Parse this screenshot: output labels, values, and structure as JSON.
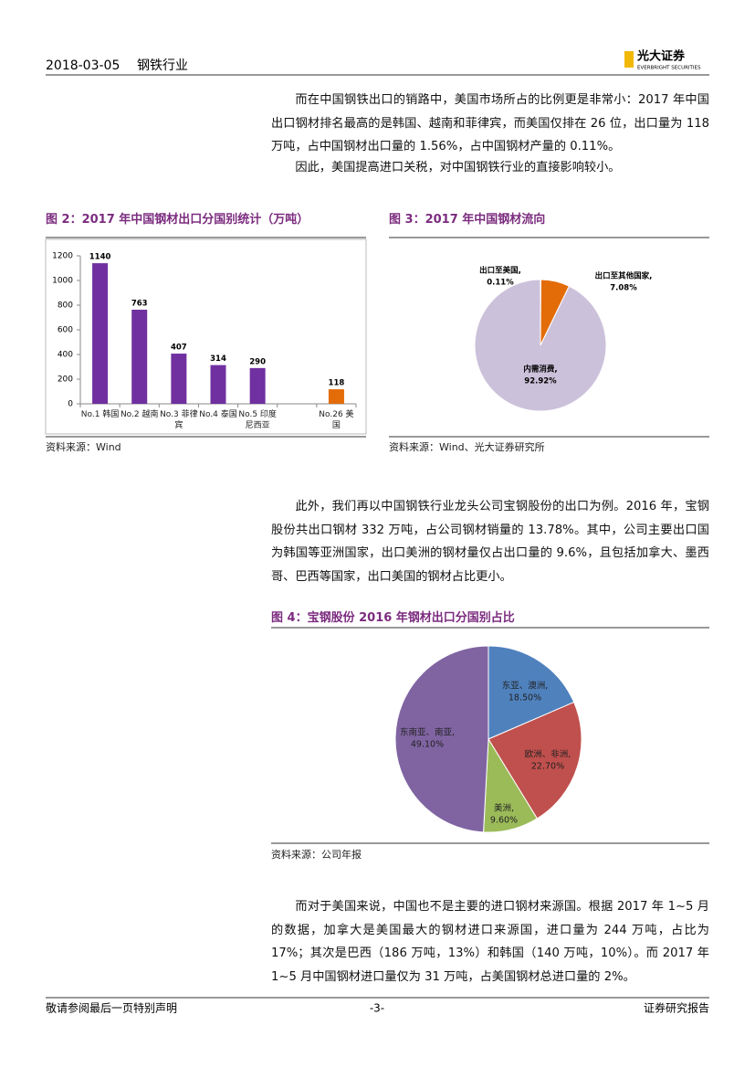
{
  "header": {
    "date": "2018-03-05",
    "section": "钢铁行业",
    "logo": "光大证券",
    "logo_en": "EVERBRIGHT SECURITIES"
  },
  "paragraphs": [
    "而在中国钢铁出口的销路中，美国市场所占的比例更是非常小：2017 年中国出口钢材排名最高的是韩国、越南和菲律宾，而美国仅排在 26 位，出口量为 118 万吨，占中国钢材出口量的 1.56%，占中国钢材产量的 0.11%。",
    "因此，美国提高进口关税，对中国钢铁行业的直接影响较小。",
    "此外，我们再以中国钢铁行业龙头公司宝钢股份的出口为例。2016 年，宝钢股份共出口钢材 332 万吨，占公司钢材销量的 13.78%。其中，公司主要出口国为韩国等亚洲国家，出口美洲的钢材量仅占出口量的 9.6%，且包括加拿大、墨西哥、巴西等国家，出口美国的钢材占比更小。",
    "而对于美国来说，中国也不是主要的进口钢材来源国。根据 2017 年 1~5 月的数据，加拿大是美国最大的钢材进口来源国，进口量为 244 万吨，占比为 17%；其次是巴西（186 万吨，13%）和韩国（140 万吨，10%）。而 2017 年 1~5 月中国钢材进口量仅为 31 万吨，占美国钢材总进口量的 2%。"
  ],
  "chart_data": [
    {
      "type": "bar",
      "title": "图 2：2017 年中国钢材出口分国别统计（万吨）",
      "categories": [
        "No.1 韩国",
        "No.2 越南",
        "No.3 菲律宾",
        "No.4 泰国",
        "No.5 印度尼西亚",
        null,
        "No.26 美国"
      ],
      "values": [
        1140,
        763,
        407,
        314,
        290,
        null,
        118
      ],
      "colors": [
        "#7030a0",
        "#7030a0",
        "#7030a0",
        "#7030a0",
        "#7030a0",
        null,
        "#e36c09"
      ],
      "ylim": [
        0,
        1200
      ],
      "yticks": [
        0,
        200,
        400,
        600,
        800,
        1000,
        1200
      ],
      "source": "资料来源：Wind"
    },
    {
      "type": "pie",
      "title": "图 3：2017 年中国钢材流向",
      "categories": [
        "出口至美国,",
        "出口至其他国家,",
        "内需消费,"
      ],
      "values": [
        0.11,
        7.08,
        92.92
      ],
      "value_labels": [
        "0.11%",
        "7.08%",
        "92.92%"
      ],
      "colors": [
        "#c0392b",
        "#e36c09",
        "#ccc1da"
      ],
      "source": "资料来源：Wind、光大证券研究所"
    },
    {
      "type": "pie",
      "title": "图 4：宝钢股份 2016 年钢材出口分国别占比",
      "categories": [
        "东亚、澳洲,",
        "欧洲、非洲,",
        "美洲,",
        "东南亚、南亚,"
      ],
      "values": [
        18.5,
        22.7,
        9.6,
        49.1
      ],
      "value_labels": [
        "18.50%",
        "22.70%",
        "9.60%",
        "49.10%"
      ],
      "colors": [
        "#4f81bd",
        "#c0504d",
        "#9bbb59",
        "#8064a2"
      ],
      "source": "资料来源：公司年报"
    }
  ],
  "footer": {
    "left": "敬请参阅最后一页特别声明",
    "center": "-3-",
    "right": "证券研究报告"
  }
}
